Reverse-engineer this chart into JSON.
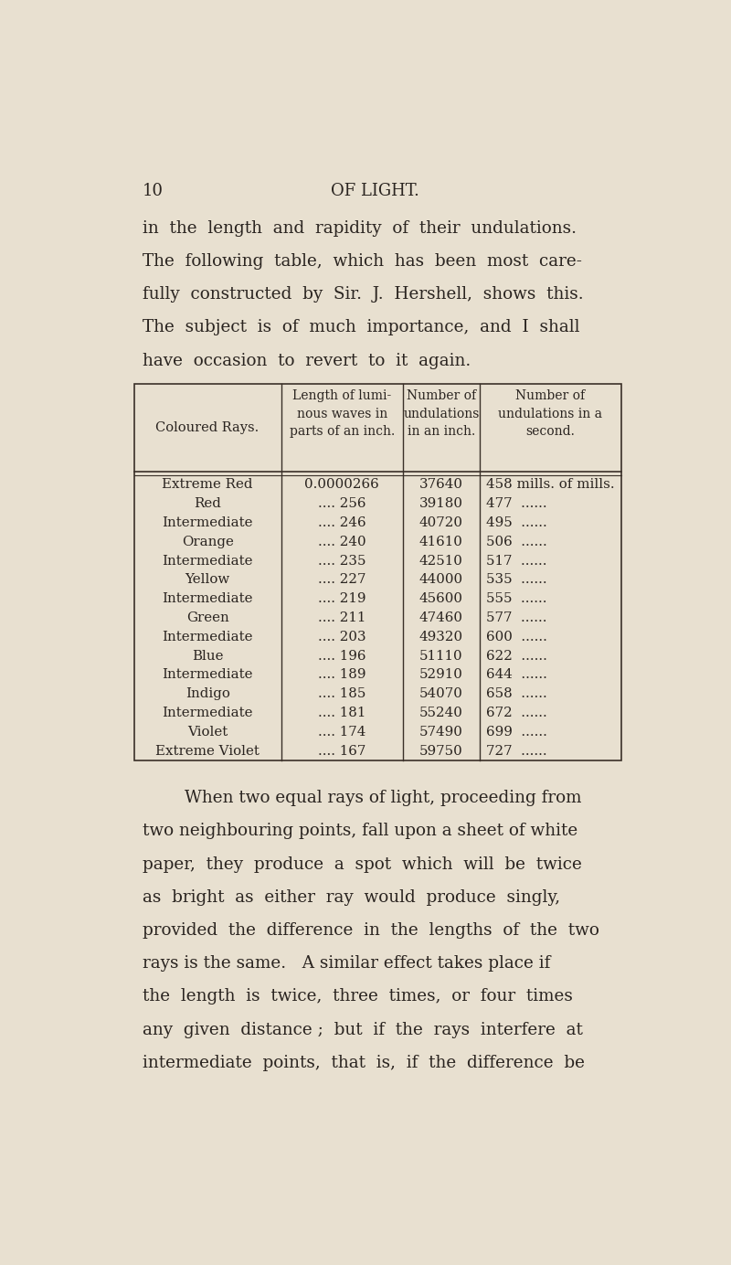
{
  "background_color": "#e8e0d0",
  "page_number": "10",
  "page_header": "OF LIGHT.",
  "intro_text": [
    "in  the  length  and  rapidity  of  their  undulations.",
    "The  following  table,  which  has  been  most  care-",
    "fully  constructed  by  Sir.  J.  Hershell,  shows  this.",
    "The  subject  is  of  much  importance,  and  I  shall",
    "have  occasion  to  revert  to  it  again."
  ],
  "table_headers": [
    "Coloured Rays.",
    "Length of lumi-\nnous waves in\nparts of an inch.",
    "Number of\nundulations\nin an inch.",
    "Number of\nundulations in a\nsecond."
  ],
  "table_rows": [
    [
      "Extreme Red",
      "0.0000266",
      "37640",
      "458 mills. of mills."
    ],
    [
      "Red",
      ".... 256",
      "39180",
      "477  ......"
    ],
    [
      "Intermediate",
      ".... 246",
      "40720",
      "495  ......"
    ],
    [
      "Orange",
      ".... 240",
      "41610",
      "506  ......"
    ],
    [
      "Intermediate",
      ".... 235",
      "42510",
      "517  ......"
    ],
    [
      "Yellow",
      ".... 227",
      "44000",
      "535  ......"
    ],
    [
      "Intermediate",
      ".... 219",
      "45600",
      "555  ......"
    ],
    [
      "Green",
      ".... 211",
      "47460",
      "577  ......"
    ],
    [
      "Intermediate",
      ".... 203",
      "49320",
      "600  ......"
    ],
    [
      "Blue",
      ".... 196",
      "51110",
      "622  ......"
    ],
    [
      "Intermediate",
      ".... 189",
      "52910",
      "644  ......"
    ],
    [
      "Indigo",
      ".... 185",
      "54070",
      "658  ......"
    ],
    [
      "Intermediate",
      ".... 181",
      "55240",
      "672  ......"
    ],
    [
      "Violet",
      ".... 174",
      "57490",
      "699  ......"
    ],
    [
      "Extreme Violet",
      ".... 167",
      "59750",
      "727  ......"
    ]
  ],
  "body_text": [
    "When two equal rays of light, proceeding from",
    "two neighbouring points, fall upon a sheet of white",
    "paper,  they  produce  a  spot  which  will  be  twice",
    "as  bright  as  either  ray  would  produce  singly,",
    "provided  the  difference  in  the  lengths  of  the  two",
    "rays is the same.   A similar effect takes place if",
    "the  length  is  twice,  three  times,  or  four  times",
    "any  given  distance ;  but  if  the  rays  interfere  at",
    "intermediate  points,  that  is,  if  the  difference  be"
  ],
  "text_color": "#2a2420",
  "line_color": "#3a3028"
}
